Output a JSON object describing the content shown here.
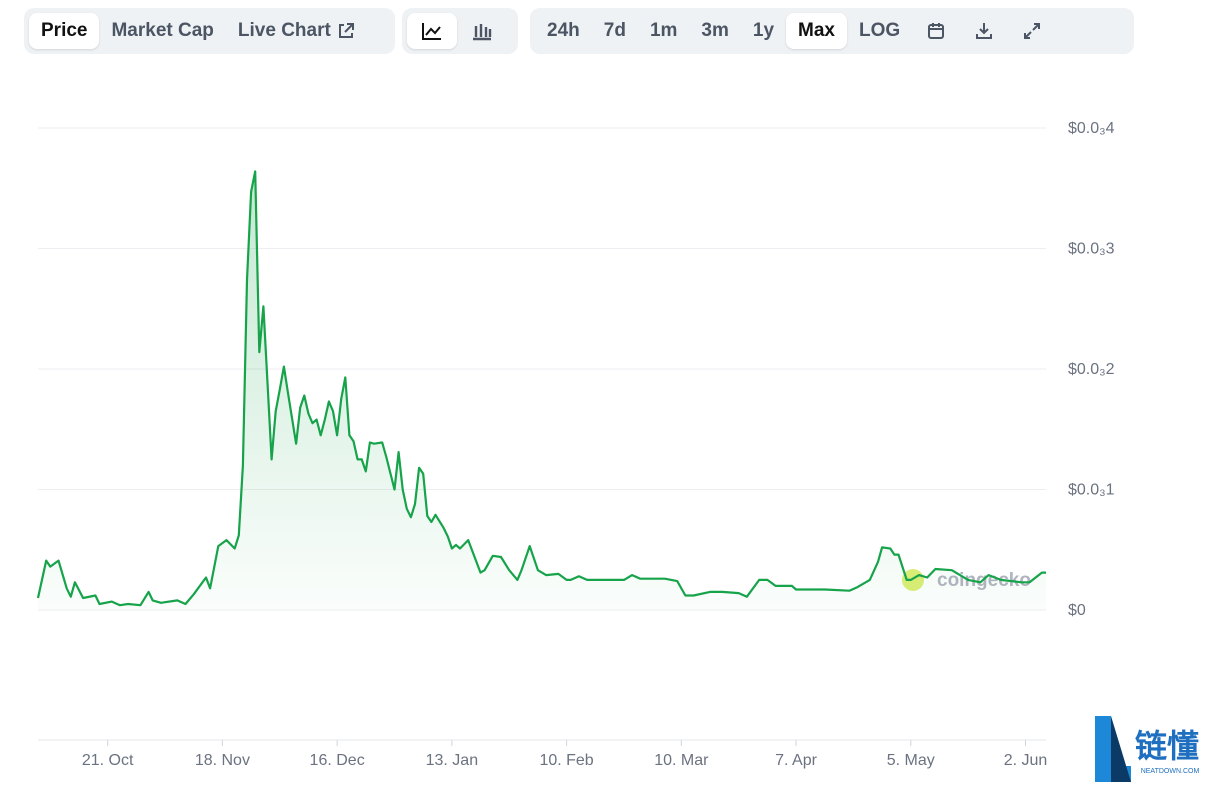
{
  "toolbar": {
    "view_tabs": [
      "Price",
      "Market Cap",
      "Live Chart"
    ],
    "ranges": [
      "24h",
      "7d",
      "1m",
      "3m",
      "1y",
      "Max",
      "LOG"
    ]
  },
  "watermark": {
    "chart": "coingecko",
    "brand": "链懂",
    "site": "NEATDOWN.COM"
  },
  "chart_data": {
    "type": "area",
    "color": "#16a34a",
    "grid": true,
    "xlim": [
      -17,
      229
    ],
    "xticks": [
      {
        "value": 0,
        "label": "21. Oct"
      },
      {
        "value": 28,
        "label": "18. Nov"
      },
      {
        "value": 56,
        "label": "16. Dec"
      },
      {
        "value": 84,
        "label": "13. Jan"
      },
      {
        "value": 112,
        "label": "10. Feb"
      },
      {
        "value": 140,
        "label": "10. Mar"
      },
      {
        "value": 168,
        "label": "7. Apr"
      },
      {
        "value": 196,
        "label": "5. May"
      },
      {
        "value": 224,
        "label": "2. Jun"
      }
    ],
    "ylim": [
      0,
      0.0004
    ],
    "yticks": [
      {
        "value": 0,
        "label": "$0"
      },
      {
        "value": 0.0001,
        "label": "$0.0₃1"
      },
      {
        "value": 0.0002,
        "label": "$0.0₃2"
      },
      {
        "value": 0.0003,
        "label": "$0.0₃3"
      },
      {
        "value": 0.0004,
        "label": "$0.0₃4"
      }
    ],
    "x": [
      -17,
      -15,
      -14,
      -12,
      -10,
      -9,
      -8,
      -6,
      -3,
      -2,
      1,
      3,
      5,
      8,
      10,
      11,
      13,
      17,
      19,
      21,
      24,
      25,
      27,
      29,
      31,
      32,
      33,
      34,
      35,
      36,
      37,
      38,
      40,
      41,
      42,
      43,
      44,
      46,
      47,
      48,
      49,
      50,
      51,
      52,
      53,
      54,
      55,
      56,
      57,
      58,
      59,
      60,
      61,
      62,
      63,
      64,
      65,
      67,
      68,
      70,
      71,
      72,
      73,
      74,
      75,
      76,
      77,
      78,
      79,
      80,
      82,
      83,
      84,
      85,
      86,
      88,
      91,
      92,
      94,
      96,
      98,
      100,
      101,
      103,
      105,
      107,
      110,
      112,
      113,
      115,
      117,
      122,
      126,
      128,
      130,
      136,
      139,
      141,
      143,
      147,
      150,
      154,
      156,
      159,
      161,
      163,
      167,
      168,
      175,
      181,
      183,
      186,
      188,
      189,
      191,
      192,
      193,
      195,
      196,
      198,
      200,
      202,
      206,
      208,
      210,
      213,
      215,
      218,
      223,
      225,
      228,
      229
    ],
    "values": [
      1e-05,
      4.1e-05,
      3.6e-05,
      4.1e-05,
      1.8e-05,
      1.1e-05,
      2.3e-05,
      1e-05,
      1.2e-05,
      5e-06,
      7e-06,
      4e-06,
      5e-06,
      4e-06,
      1.5e-05,
      8e-06,
      6e-06,
      8e-06,
      5e-06,
      1.3e-05,
      2.7e-05,
      1.8e-05,
      5.3e-05,
      5.8e-05,
      5.1e-05,
      6.2e-05,
      0.00012,
      0.000274,
      0.000347,
      0.000364,
      0.000214,
      0.000252,
      0.000125,
      0.000165,
      0.000183,
      0.000202,
      0.00018,
      0.000138,
      0.000168,
      0.000178,
      0.000163,
      0.000155,
      0.000158,
      0.000145,
      0.000158,
      0.000173,
      0.000165,
      0.000145,
      0.000175,
      0.000193,
      0.000145,
      0.00014,
      0.000125,
      0.000125,
      0.000115,
      0.000139,
      0.000138,
      0.000139,
      0.000127,
      0.0001,
      0.000131,
      0.0001,
      8.4e-05,
      7.7e-05,
      8.8e-05,
      0.000118,
      0.000113,
      7.8e-05,
      7.3e-05,
      7.9e-05,
      6.8e-05,
      6.1e-05,
      5.1e-05,
      5.4e-05,
      5.1e-05,
      5.8e-05,
      3.1e-05,
      3.3e-05,
      4.5e-05,
      4.4e-05,
      3.3e-05,
      2.5e-05,
      3.3e-05,
      5.3e-05,
      3.3e-05,
      2.9e-05,
      3e-05,
      2.5e-05,
      2.5e-05,
      2.8e-05,
      2.5e-05,
      2.5e-05,
      2.5e-05,
      2.9e-05,
      2.6e-05,
      2.6e-05,
      2.4e-05,
      1.2e-05,
      1.2e-05,
      1.5e-05,
      1.5e-05,
      1.4e-05,
      1.1e-05,
      2.5e-05,
      2.5e-05,
      2e-05,
      2e-05,
      1.7e-05,
      1.7e-05,
      1.6e-05,
      1.9e-05,
      2.5e-05,
      4e-05,
      5.2e-05,
      5.1e-05,
      4.6e-05,
      4.6e-05,
      2.5e-05,
      2.5e-05,
      2.9e-05,
      2.7e-05,
      3.4e-05,
      3.3e-05,
      2.9e-05,
      2.5e-05,
      2.3e-05,
      2.9e-05,
      2.5e-05,
      2.3e-05,
      2.3e-05,
      3.1e-05,
      3.1e-05
    ]
  }
}
